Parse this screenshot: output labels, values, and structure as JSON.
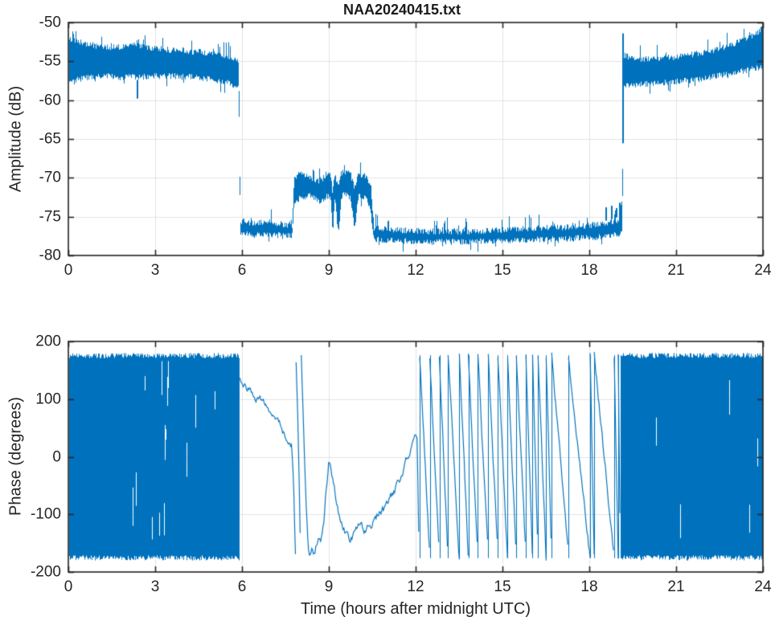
{
  "figure": {
    "title": "NAA20240415.txt",
    "top_plot": {
      "ylabel": "Amplitude (dB)"
    },
    "bottom_plot": {
      "ylabel": "Phase (degrees)",
      "xlabel": "Time (hours after midnight UTC)"
    },
    "colors": {
      "line": "#0072BD",
      "grid": "#e3e3e3",
      "axis": "#262626",
      "text": "#262626",
      "background": "#ffffff"
    }
  },
  "chart_data": [
    {
      "type": "line",
      "subplot": "top",
      "title": "NAA20240415.txt",
      "xlabel": "",
      "ylabel": "Amplitude (dB)",
      "xlim": [
        0,
        24
      ],
      "ylim": [
        -80,
        -50
      ],
      "xticks": [
        0,
        3,
        6,
        9,
        12,
        15,
        18,
        21,
        24
      ],
      "yticks": [
        -50,
        -55,
        -60,
        -65,
        -70,
        -75,
        -80
      ],
      "grid": true,
      "line_color": "#0072BD",
      "series": [
        {
          "name": "NAA amplitude",
          "representation": "noisy band envelope [t_hours, min_dB, max_dB]",
          "envelope": [
            [
              0,
              -58.0,
              -51.7
            ],
            [
              0.3,
              -57.7,
              -52.0
            ],
            [
              0.8,
              -57.4,
              -52.5
            ],
            [
              1.3,
              -57.3,
              -52.8
            ],
            [
              1.8,
              -57.5,
              -52.8
            ],
            [
              2.2,
              -57.4,
              -52.4
            ],
            [
              2.7,
              -57.4,
              -52.8
            ],
            [
              3.2,
              -57.3,
              -53.0
            ],
            [
              3.8,
              -57.3,
              -53.2
            ],
            [
              4.5,
              -57.5,
              -53.4
            ],
            [
              5.0,
              -57.8,
              -53.6
            ],
            [
              5.5,
              -58.2,
              -53.9
            ],
            [
              5.88,
              -58.9,
              -54.4
            ],
            [
              5.93,
              -77.6,
              -75.2
            ],
            [
              6.4,
              -77.8,
              -75.4
            ],
            [
              7.0,
              -77.7,
              -75.3
            ],
            [
              7.4,
              -77.9,
              -75.6
            ],
            [
              7.73,
              -77.8,
              -75.7
            ],
            [
              7.79,
              -73.4,
              -69.5
            ],
            [
              8.0,
              -73.0,
              -69.0
            ],
            [
              8.35,
              -72.6,
              -69.6
            ],
            [
              8.65,
              -73.4,
              -70.0
            ],
            [
              8.95,
              -72.8,
              -69.2
            ],
            [
              9.06,
              -73.0,
              -69.2
            ],
            [
              9.12,
              -77.6,
              -71.5
            ],
            [
              9.2,
              -73.0,
              -69.3
            ],
            [
              9.32,
              -77.8,
              -70.5
            ],
            [
              9.42,
              -72.8,
              -68.9
            ],
            [
              9.55,
              -72.5,
              -68.8
            ],
            [
              9.75,
              -73.2,
              -69.2
            ],
            [
              9.88,
              -77.3,
              -71.0
            ],
            [
              10.0,
              -72.6,
              -69.0
            ],
            [
              10.2,
              -72.9,
              -69.3
            ],
            [
              10.35,
              -73.5,
              -69.8
            ],
            [
              10.45,
              -75.0,
              -71.0
            ],
            [
              10.55,
              -78.3,
              -76.0
            ],
            [
              11.2,
              -78.5,
              -76.3
            ],
            [
              12.5,
              -78.7,
              -76.5
            ],
            [
              14.0,
              -78.6,
              -76.5
            ],
            [
              15.5,
              -78.4,
              -76.2
            ],
            [
              17.0,
              -78.3,
              -76.0
            ],
            [
              18.0,
              -78.1,
              -75.7
            ],
            [
              18.6,
              -77.9,
              -75.5
            ],
            [
              19.0,
              -77.7,
              -75.0
            ],
            [
              19.08,
              -77.5,
              -73.5
            ],
            [
              19.13,
              -77.3,
              -72.6
            ],
            [
              19.17,
              -58.4,
              -53.8
            ],
            [
              19.6,
              -58.5,
              -54.3
            ],
            [
              20.2,
              -58.2,
              -54.3
            ],
            [
              21.0,
              -58.0,
              -54.0
            ],
            [
              21.6,
              -57.8,
              -53.7
            ],
            [
              22.2,
              -57.4,
              -53.3
            ],
            [
              22.8,
              -57.0,
              -52.6
            ],
            [
              23.2,
              -56.7,
              -52.0
            ],
            [
              23.6,
              -56.4,
              -51.3
            ],
            [
              23.85,
              -56.2,
              -50.7
            ],
            [
              24,
              -56.0,
              -50.3
            ]
          ],
          "spikes": [
            [
              2.35,
              -59.8
            ],
            [
              18.55,
              -73.8
            ],
            [
              18.75,
              -73.6
            ],
            [
              18.92,
              -73.9
            ],
            [
              19.02,
              -73.2
            ],
            [
              19.145,
              -51.4
            ]
          ]
        }
      ]
    },
    {
      "type": "line",
      "subplot": "bottom",
      "xlabel": "Time (hours after midnight UTC)",
      "ylabel": "Phase (degrees)",
      "xlim": [
        0,
        24
      ],
      "ylim": [
        -200,
        200
      ],
      "xticks": [
        0,
        3,
        6,
        9,
        12,
        15,
        18,
        21,
        24
      ],
      "yticks": [
        200,
        100,
        0,
        -100,
        -200
      ],
      "grid": true,
      "line_color": "#0072BD",
      "series": [
        {
          "name": "NAA phase",
          "segments": [
            {
              "mode": "noise_band",
              "t0": 0.02,
              "t1": 5.9,
              "lo": -180,
              "hi": 180,
              "gaps": [
                [
                  0.1,
                  2.2,
                  0.05
                ],
                [
                  2.2,
                  2.6,
                  0.22
                ],
                [
                  2.6,
                  3.1,
                  0.08
                ],
                [
                  3.1,
                  3.5,
                  0.2
                ],
                [
                  3.5,
                  5.9,
                  0.05
                ]
              ]
            },
            {
              "mode": "path",
              "jitter": 11,
              "points": [
                [
                  5.93,
                  132
                ],
                [
                  6.1,
                  120
                ],
                [
                  6.3,
                  112
                ],
                [
                  6.5,
                  102
                ],
                [
                  6.7,
                  92
                ],
                [
                  6.9,
                  86
                ],
                [
                  7.05,
                  72
                ],
                [
                  7.2,
                  62
                ],
                [
                  7.35,
                  50
                ],
                [
                  7.5,
                  36
                ],
                [
                  7.62,
                  22
                ],
                [
                  7.72,
                  18
                ],
                [
                  7.78,
                  -40
                ],
                [
                  7.82,
                  -120
                ],
                [
                  7.85,
                  -172
                ]
              ]
            },
            {
              "mode": "path",
              "jitter": 9,
              "points": [
                [
                  7.87,
                  162
                ],
                [
                  7.93,
                  70
                ],
                [
                  7.98,
                  -50
                ],
                [
                  8.02,
                  -160
                ]
              ]
            },
            {
              "mode": "path",
              "jitter": 12,
              "points": [
                [
                  8.05,
                  172
                ],
                [
                  8.12,
                  60
                ],
                [
                  8.2,
                  -60
                ],
                [
                  8.28,
                  -150
                ],
                [
                  8.33,
                  -170
                ],
                [
                  8.42,
                  -158
                ],
                [
                  8.52,
                  -168
                ],
                [
                  8.62,
                  -140
                ],
                [
                  8.72,
                  -155
                ],
                [
                  8.82,
                  -120
                ],
                [
                  8.9,
                  -60
                ],
                [
                  9.0,
                  -8
                ],
                [
                  9.08,
                  -18
                ],
                [
                  9.18,
                  -48
                ],
                [
                  9.28,
                  -80
                ],
                [
                  9.38,
                  -108
                ],
                [
                  9.48,
                  -124
                ],
                [
                  9.6,
                  -133
                ],
                [
                  9.72,
                  -140
                ],
                [
                  9.85,
                  -132
                ],
                [
                  9.95,
                  -127
                ],
                [
                  10.1,
                  -122
                ],
                [
                  10.25,
                  -129
                ],
                [
                  10.4,
                  -122
                ],
                [
                  10.55,
                  -110
                ],
                [
                  10.7,
                  -101
                ],
                [
                  10.85,
                  -95
                ],
                [
                  11.0,
                  -86
                ],
                [
                  11.15,
                  -70
                ],
                [
                  11.3,
                  -56
                ],
                [
                  11.45,
                  -42
                ],
                [
                  11.6,
                  -22
                ],
                [
                  11.75,
                  -2
                ],
                [
                  11.88,
                  28
                ],
                [
                  11.98,
                  40
                ],
                [
                  12.05,
                  22
                ],
                [
                  12.1,
                  -120
                ],
                [
                  12.12,
                  -172
                ]
              ]
            },
            {
              "mode": "wraps",
              "hi": 176,
              "lo": -176,
              "jitter": 13,
              "times": [
                12.14,
                12.49,
                12.82,
                13.12,
                13.51,
                13.82,
                14.15,
                14.51,
                14.84,
                15.18,
                15.48,
                15.81,
                16.04,
                16.23,
                16.51,
                16.7,
                17.28,
                18.03,
                18.17,
                18.86,
                19.0,
                19.07
              ]
            },
            {
              "mode": "noise_band",
              "t0": 19.09,
              "t1": 23.99,
              "lo": -180,
              "hi": 180,
              "gaps": [
                [
                  19.1,
                  24,
                  0.025
                ]
              ]
            }
          ]
        }
      ]
    }
  ]
}
